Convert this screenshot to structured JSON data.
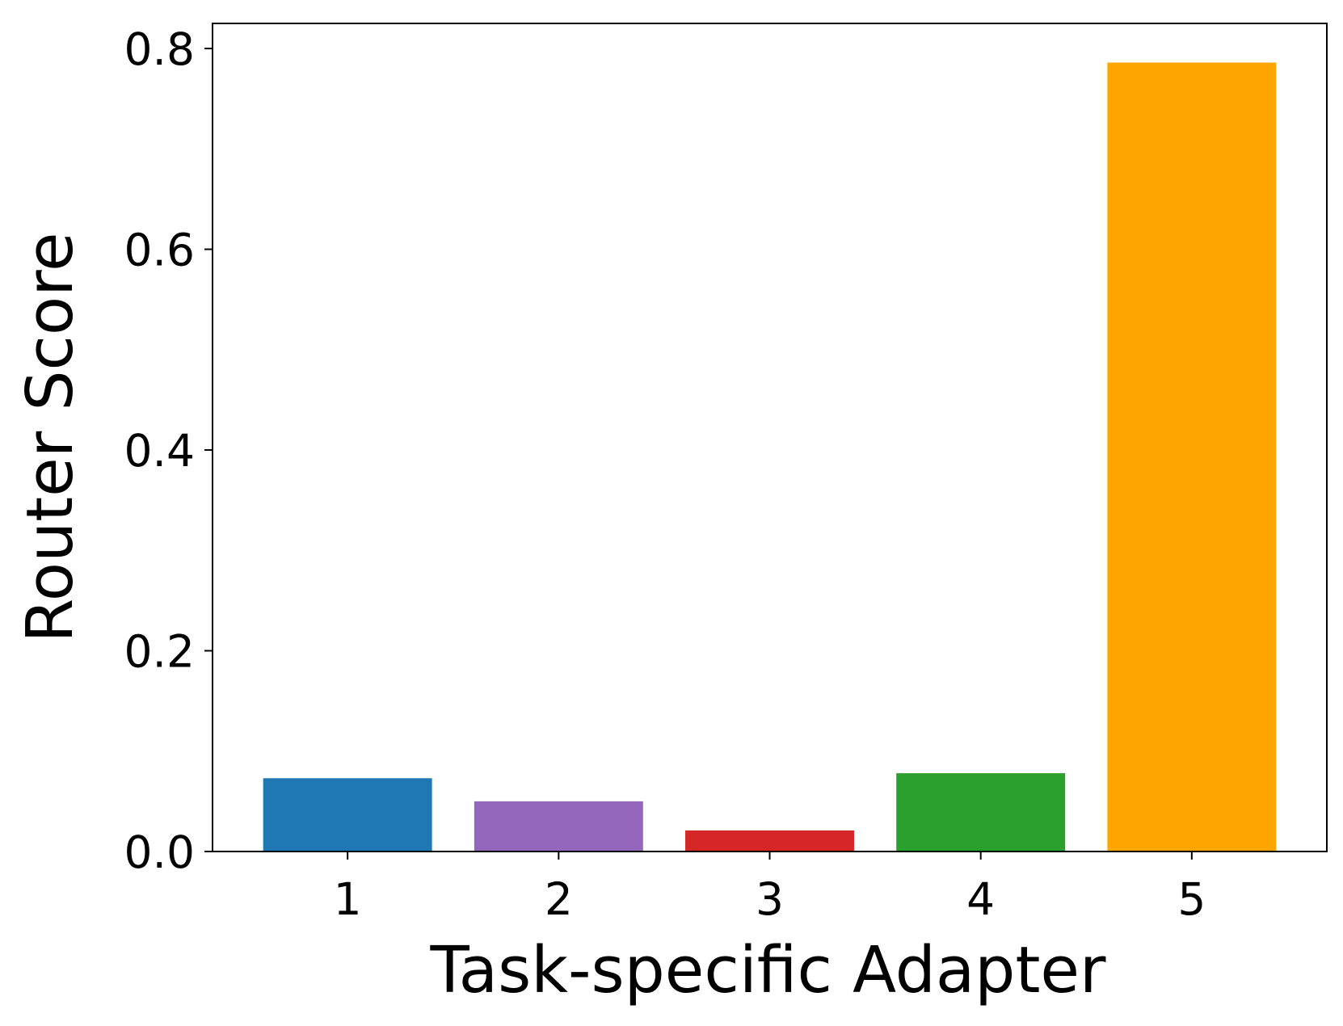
{
  "chart_data": {
    "type": "bar",
    "title": "",
    "xlabel": "Task-specific Adapter",
    "ylabel": "Router Score",
    "categories": [
      "1",
      "2",
      "3",
      "4",
      "5"
    ],
    "values": [
      0.073,
      0.05,
      0.021,
      0.078,
      0.786
    ],
    "colors": [
      "#1f77b4",
      "#9467bd",
      "#d62728",
      "#2ca02c",
      "#ffa500"
    ],
    "ylim": [
      0,
      0.825
    ],
    "xlim": [
      0.36,
      5.64
    ],
    "yticks": [
      0.0,
      0.2,
      0.4,
      0.6,
      0.8
    ],
    "ytick_labels": [
      "0.0",
      "0.2",
      "0.4",
      "0.6",
      "0.8"
    ],
    "bar_width": 0.8,
    "grid": false,
    "legend": "none"
  }
}
